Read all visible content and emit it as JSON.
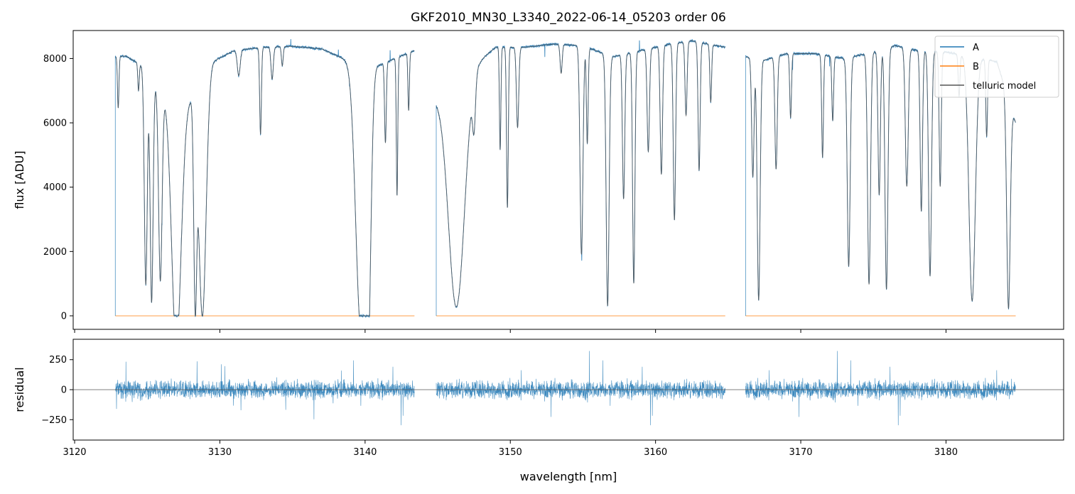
{
  "chart_data": [
    {
      "type": "line",
      "title": "GKF2010_MN30_L3340_2022-06-14_05203  order 06",
      "xlabel": "",
      "ylabel": "flux [ADU]",
      "xlim": [
        3119.9,
        3188.1
      ],
      "ylim": [
        -420,
        8870
      ],
      "yticks": [
        0,
        2000,
        4000,
        6000,
        8000
      ],
      "ytick_labels": [
        "0",
        "2000",
        "4000",
        "6000",
        "8000"
      ],
      "grid": false,
      "legend_placement": "upper right",
      "segments": [
        [
          3122.8,
          3143.4
        ],
        [
          3144.9,
          3164.8
        ],
        [
          3166.2,
          3184.8
        ]
      ],
      "continuum": [
        [
          3122.8,
          8050
        ],
        [
          3123.5,
          8080
        ],
        [
          3124.5,
          7820
        ],
        [
          3126.0,
          7050
        ],
        [
          3127.5,
          6400
        ],
        [
          3129.5,
          7900
        ],
        [
          3131.0,
          8250
        ],
        [
          3133.0,
          8350
        ],
        [
          3135.0,
          8380
        ],
        [
          3137.0,
          8300
        ],
        [
          3138.5,
          8000
        ],
        [
          3141.0,
          7800
        ],
        [
          3143.4,
          8250
        ],
        [
          3144.9,
          6800
        ],
        [
          3146.0,
          7150
        ],
        [
          3147.5,
          7800
        ],
        [
          3149.0,
          8350
        ],
        [
          3151.0,
          8350
        ],
        [
          3153.0,
          8450
        ],
        [
          3155.0,
          8400
        ],
        [
          3157.0,
          8050
        ],
        [
          3159.0,
          8250
        ],
        [
          3161.0,
          8450
        ],
        [
          3162.5,
          8550
        ],
        [
          3164.8,
          8350
        ],
        [
          3166.2,
          8050
        ],
        [
          3167.5,
          7950
        ],
        [
          3169.0,
          8150
        ],
        [
          3171.0,
          8150
        ],
        [
          3173.0,
          8000
        ],
        [
          3175.0,
          8200
        ],
        [
          3176.5,
          8400
        ],
        [
          3178.0,
          8250
        ],
        [
          3180.0,
          8200
        ],
        [
          3182.0,
          8050
        ],
        [
          3183.5,
          7900
        ],
        [
          3184.8,
          6000
        ]
      ],
      "absorption_lines": [
        [
          3123.0,
          1600,
          0.05
        ],
        [
          3124.4,
          850,
          0.05
        ],
        [
          3124.9,
          6650,
          0.1
        ],
        [
          3125.3,
          7000,
          0.1
        ],
        [
          3125.9,
          6000,
          0.12
        ],
        [
          3127.0,
          7600,
          0.32
        ],
        [
          3128.3,
          6000,
          0.1
        ],
        [
          3128.8,
          7400,
          0.25
        ],
        [
          3131.3,
          800,
          0.1
        ],
        [
          3132.8,
          2700,
          0.06
        ],
        [
          3133.6,
          1000,
          0.08
        ],
        [
          3134.3,
          600,
          0.06
        ],
        [
          3139.7,
          8200,
          0.35
        ],
        [
          3140.2,
          7000,
          0.2
        ],
        [
          3141.4,
          2500,
          0.06
        ],
        [
          3142.2,
          4300,
          0.05
        ],
        [
          3143.0,
          1800,
          0.05
        ],
        [
          3146.3,
          7000,
          0.55
        ],
        [
          3147.5,
          1500,
          0.1
        ],
        [
          3149.3,
          3200,
          0.05
        ],
        [
          3149.8,
          5000,
          0.06
        ],
        [
          3150.5,
          2500,
          0.08
        ],
        [
          3153.5,
          900,
          0.07
        ],
        [
          3154.9,
          6500,
          0.1
        ],
        [
          3155.3,
          3000,
          0.06
        ],
        [
          3156.7,
          7800,
          0.1
        ],
        [
          3157.8,
          4500,
          0.08
        ],
        [
          3158.5,
          7200,
          0.08
        ],
        [
          3159.5,
          3200,
          0.08
        ],
        [
          3160.4,
          4000,
          0.08
        ],
        [
          3161.3,
          5500,
          0.08
        ],
        [
          3162.1,
          2300,
          0.07
        ],
        [
          3163.0,
          4000,
          0.07
        ],
        [
          3163.8,
          1800,
          0.06
        ],
        [
          3166.7,
          3700,
          0.08
        ],
        [
          3167.1,
          7500,
          0.1
        ],
        [
          3168.3,
          3500,
          0.08
        ],
        [
          3169.3,
          2000,
          0.06
        ],
        [
          3171.5,
          3200,
          0.06
        ],
        [
          3172.2,
          2000,
          0.06
        ],
        [
          3173.3,
          6500,
          0.1
        ],
        [
          3174.7,
          7200,
          0.1
        ],
        [
          3175.4,
          4500,
          0.08
        ],
        [
          3175.9,
          7500,
          0.1
        ],
        [
          3177.3,
          4300,
          0.1
        ],
        [
          3178.3,
          5000,
          0.08
        ],
        [
          3178.9,
          7000,
          0.1
        ],
        [
          3179.6,
          4200,
          0.07
        ],
        [
          3180.9,
          1300,
          0.06
        ],
        [
          3181.8,
          7600,
          0.22
        ],
        [
          3182.8,
          2400,
          0.06
        ],
        [
          3184.3,
          6500,
          0.12
        ]
      ],
      "series": [
        {
          "name": "A",
          "color": "#1f77b4",
          "role": "observed spectrum"
        },
        {
          "name": "B",
          "color": "#ff7f0e",
          "role": "observed spectrum",
          "constant_value": 0
        },
        {
          "name": "telluric model",
          "color": "#555555",
          "role": "model"
        }
      ]
    },
    {
      "type": "line",
      "title": "",
      "xlabel": "wavelength [nm]",
      "ylabel": "residual",
      "xlim": [
        3119.9,
        3188.1
      ],
      "ylim": [
        -420,
        420
      ],
      "xticks": [
        3120,
        3130,
        3140,
        3150,
        3160,
        3170,
        3180
      ],
      "xtick_labels": [
        "3120",
        "3130",
        "3140",
        "3150",
        "3160",
        "3170",
        "3180"
      ],
      "yticks": [
        -250,
        0,
        250
      ],
      "ytick_labels": [
        "−250",
        "0",
        "250"
      ],
      "reference_line": 0,
      "grid": false,
      "series": [
        {
          "name": "",
          "color": "#1f77b4",
          "noise_amplitude": 70
        }
      ]
    }
  ]
}
